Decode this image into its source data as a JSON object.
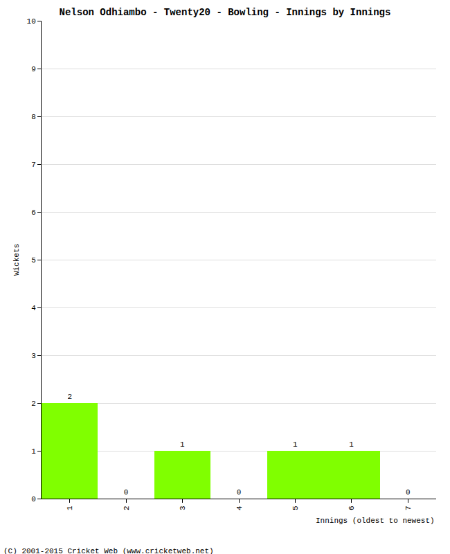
{
  "chart_data": {
    "type": "bar",
    "title": "Nelson Odhiambo - Twenty20 - Bowling - Innings by Innings",
    "x_label": "Innings (oldest to newest)",
    "y_label": "Wickets",
    "categories": [
      "1",
      "2",
      "3",
      "4",
      "5",
      "6",
      "7"
    ],
    "values": [
      2,
      0,
      1,
      0,
      1,
      1,
      0
    ],
    "color": "#80ff00",
    "ylim": [
      0,
      10
    ],
    "yticks": [
      0,
      1,
      2,
      3,
      4,
      5,
      6,
      7,
      8,
      9,
      10
    ],
    "grid": true,
    "data_labels": true,
    "annotations": [
      "(C) 2001-2015 Cricket Web (www.cricketweb.net)"
    ]
  }
}
